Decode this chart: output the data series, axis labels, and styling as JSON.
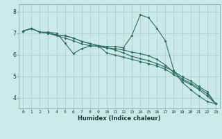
{
  "xlabel": "Humidex (Indice chaleur)",
  "bg_color": "#cce8e8",
  "line_color": "#2d6e65",
  "grid_color": "#aacece",
  "xlim": [
    -0.5,
    23.5
  ],
  "ylim": [
    3.5,
    8.35
  ],
  "xticks": [
    0,
    1,
    2,
    3,
    4,
    5,
    6,
    7,
    8,
    9,
    10,
    11,
    12,
    13,
    14,
    15,
    16,
    17,
    18,
    19,
    20,
    21,
    22,
    23
  ],
  "yticks": [
    4,
    5,
    6,
    7,
    8
  ],
  "line1": [
    7.1,
    7.22,
    7.05,
    7.05,
    7.0,
    6.55,
    6.05,
    6.28,
    6.4,
    6.42,
    6.38,
    6.38,
    6.32,
    6.9,
    7.85,
    7.72,
    7.22,
    6.65,
    5.28,
    4.72,
    4.38,
    4.08,
    3.82,
    3.72
  ],
  "line2": [
    7.1,
    7.22,
    7.05,
    7.0,
    6.88,
    6.78,
    6.65,
    6.5,
    6.42,
    6.38,
    6.32,
    6.28,
    6.22,
    6.12,
    6.05,
    5.95,
    5.78,
    5.52,
    5.18,
    4.88,
    4.68,
    4.45,
    4.18,
    3.72
  ],
  "line3": [
    7.1,
    7.22,
    7.05,
    7.0,
    6.92,
    6.88,
    6.78,
    6.62,
    6.52,
    6.42,
    6.32,
    6.22,
    6.08,
    5.92,
    5.82,
    5.72,
    5.58,
    5.42,
    5.22,
    4.98,
    4.78,
    4.52,
    4.28,
    3.72
  ],
  "line4": [
    7.1,
    7.22,
    7.05,
    7.0,
    6.92,
    6.88,
    6.78,
    6.62,
    6.52,
    6.42,
    6.08,
    5.98,
    5.88,
    5.78,
    5.68,
    5.58,
    5.48,
    5.32,
    5.08,
    4.82,
    4.62,
    4.38,
    4.08,
    3.72
  ]
}
